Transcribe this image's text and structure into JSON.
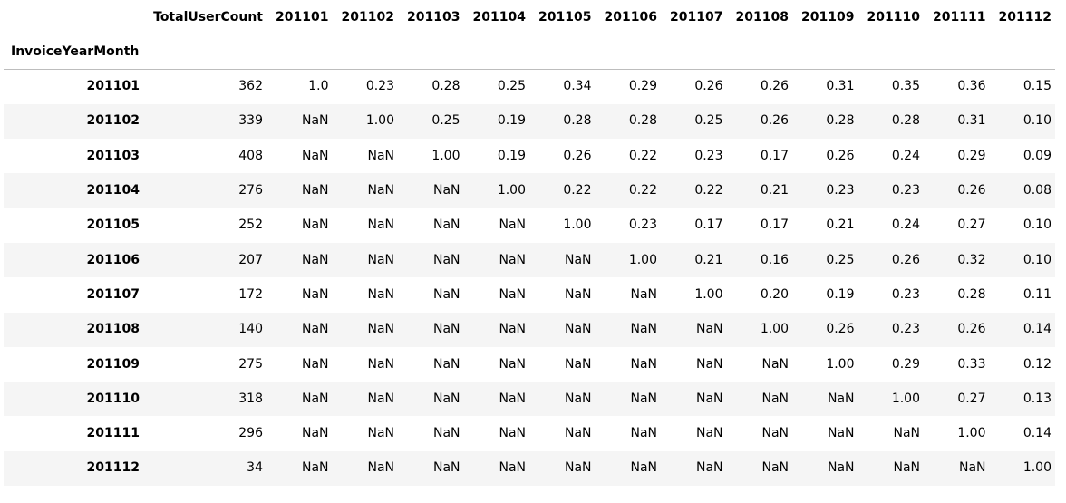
{
  "table": {
    "index_name": "InvoiceYearMonth",
    "columns": [
      "TotalUserCount",
      "201101",
      "201102",
      "201103",
      "201104",
      "201105",
      "201106",
      "201107",
      "201108",
      "201109",
      "201110",
      "201111",
      "201112"
    ],
    "rows": [
      {
        "index": "201101",
        "values": [
          "362",
          "1.0",
          "0.23",
          "0.28",
          "0.25",
          "0.34",
          "0.29",
          "0.26",
          "0.26",
          "0.31",
          "0.35",
          "0.36",
          "0.15"
        ]
      },
      {
        "index": "201102",
        "values": [
          "339",
          "NaN",
          "1.00",
          "0.25",
          "0.19",
          "0.28",
          "0.28",
          "0.25",
          "0.26",
          "0.28",
          "0.28",
          "0.31",
          "0.10"
        ]
      },
      {
        "index": "201103",
        "values": [
          "408",
          "NaN",
          "NaN",
          "1.00",
          "0.19",
          "0.26",
          "0.22",
          "0.23",
          "0.17",
          "0.26",
          "0.24",
          "0.29",
          "0.09"
        ]
      },
      {
        "index": "201104",
        "values": [
          "276",
          "NaN",
          "NaN",
          "NaN",
          "1.00",
          "0.22",
          "0.22",
          "0.22",
          "0.21",
          "0.23",
          "0.23",
          "0.26",
          "0.08"
        ]
      },
      {
        "index": "201105",
        "values": [
          "252",
          "NaN",
          "NaN",
          "NaN",
          "NaN",
          "1.00",
          "0.23",
          "0.17",
          "0.17",
          "0.21",
          "0.24",
          "0.27",
          "0.10"
        ]
      },
      {
        "index": "201106",
        "values": [
          "207",
          "NaN",
          "NaN",
          "NaN",
          "NaN",
          "NaN",
          "1.00",
          "0.21",
          "0.16",
          "0.25",
          "0.26",
          "0.32",
          "0.10"
        ]
      },
      {
        "index": "201107",
        "values": [
          "172",
          "NaN",
          "NaN",
          "NaN",
          "NaN",
          "NaN",
          "NaN",
          "1.00",
          "0.20",
          "0.19",
          "0.23",
          "0.28",
          "0.11"
        ]
      },
      {
        "index": "201108",
        "values": [
          "140",
          "NaN",
          "NaN",
          "NaN",
          "NaN",
          "NaN",
          "NaN",
          "NaN",
          "1.00",
          "0.26",
          "0.23",
          "0.26",
          "0.14"
        ]
      },
      {
        "index": "201109",
        "values": [
          "275",
          "NaN",
          "NaN",
          "NaN",
          "NaN",
          "NaN",
          "NaN",
          "NaN",
          "NaN",
          "1.00",
          "0.29",
          "0.33",
          "0.12"
        ]
      },
      {
        "index": "201110",
        "values": [
          "318",
          "NaN",
          "NaN",
          "NaN",
          "NaN",
          "NaN",
          "NaN",
          "NaN",
          "NaN",
          "NaN",
          "1.00",
          "0.27",
          "0.13"
        ]
      },
      {
        "index": "201111",
        "values": [
          "296",
          "NaN",
          "NaN",
          "NaN",
          "NaN",
          "NaN",
          "NaN",
          "NaN",
          "NaN",
          "NaN",
          "NaN",
          "1.00",
          "0.14"
        ]
      },
      {
        "index": "201112",
        "values": [
          "34",
          "NaN",
          "NaN",
          "NaN",
          "NaN",
          "NaN",
          "NaN",
          "NaN",
          "NaN",
          "NaN",
          "NaN",
          "NaN",
          "1.00"
        ]
      }
    ]
  }
}
